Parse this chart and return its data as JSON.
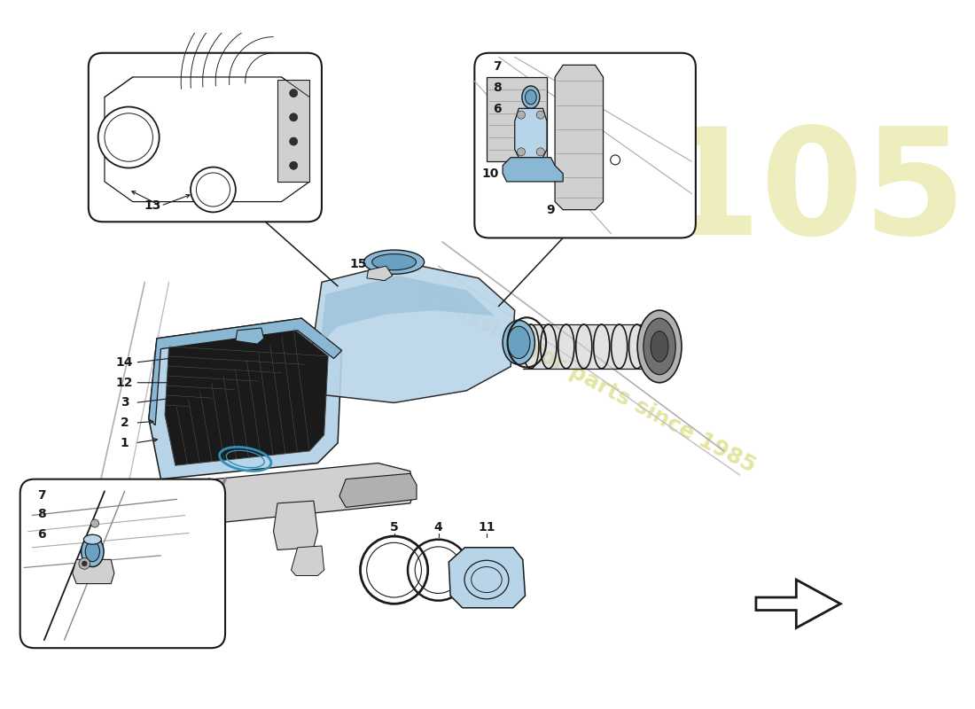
{
  "bg_color": "#ffffff",
  "lc": "#1a1a1a",
  "blue": "#b8d4e8",
  "blue2": "#8ab8d4",
  "blue3": "#6aa0c0",
  "gray": "#b0b0b0",
  "gray2": "#d0d0d0",
  "dark": "#303030",
  "wm_color": "#d8d870",
  "wm_alpha": 0.65,
  "logo_color": "#d8d870",
  "logo_alpha": 0.45
}
